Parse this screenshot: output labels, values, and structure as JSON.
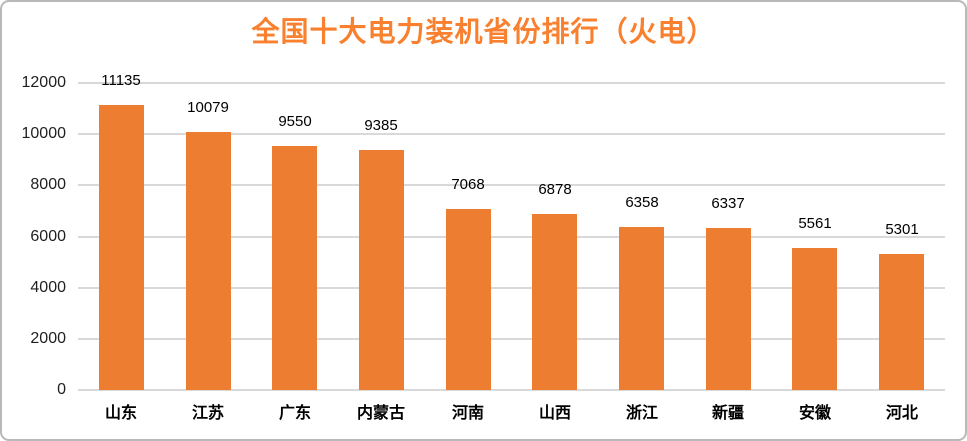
{
  "card": {
    "background": "#ffffff",
    "border_color": "#b9b9b9"
  },
  "chart_data": {
    "type": "bar",
    "title": "全国十大电力装机省份排行（火电）",
    "categories": [
      "山东",
      "江苏",
      "广东",
      "内蒙古",
      "河南",
      "山西",
      "浙江",
      "新疆",
      "安徽",
      "河北"
    ],
    "values": [
      11135,
      10079,
      9550,
      9385,
      7068,
      6878,
      6358,
      6337,
      5561,
      5301
    ],
    "xlabel": "",
    "ylabel": "",
    "ylim": [
      0,
      12000
    ],
    "ytick_step": 2000,
    "ytick_labels": [
      "0",
      "2000",
      "4000",
      "6000",
      "8000",
      "10000",
      "12000"
    ],
    "grid": true,
    "legend": "none",
    "data_labels": true,
    "colors": {
      "bar": "#ED7D31",
      "title": "#F8802E",
      "gridline": "#D9D9D9",
      "axis_tick_labels": "#1f1f1f",
      "data_labels": "#000000",
      "category_labels": "#000000"
    }
  }
}
